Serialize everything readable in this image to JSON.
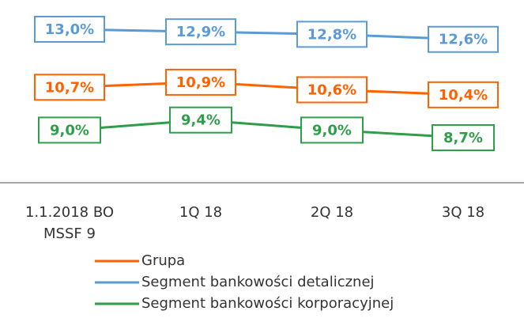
{
  "chart_data": {
    "type": "line",
    "categories": [
      "1.1.2018 BO\nMSSF 9",
      "1Q 18",
      "2Q 18",
      "3Q 18"
    ],
    "series": [
      {
        "name": "Grupa",
        "color": "#ff6200",
        "values": [
          10.7,
          10.9,
          10.6,
          10.4
        ],
        "value_labels": [
          "10,7%",
          "10,9%",
          "10,6%",
          "10,4%"
        ]
      },
      {
        "name": "Segment bankowości detalicznej",
        "color": "#5b9bd5",
        "values": [
          13.0,
          12.9,
          12.8,
          12.6
        ],
        "value_labels": [
          "13,0%",
          "12,9%",
          "12,8%",
          "12,6%"
        ]
      },
      {
        "name": "Segment bankowości korporacyjnej",
        "color": "#2e9e4a",
        "values": [
          9.0,
          9.4,
          9.0,
          8.7
        ],
        "value_labels": [
          "9,0%",
          "9,4%",
          "9,0%",
          "8,7%"
        ]
      }
    ]
  }
}
